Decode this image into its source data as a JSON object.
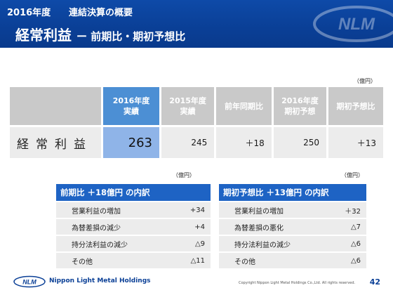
{
  "header": {
    "year": "2016年度",
    "subtitle": "連結決算の概要",
    "title": "経常利益",
    "title_sub": "ー 前期比・期初予想比"
  },
  "unit_main": "（億円）",
  "main_table": {
    "headers": [
      "2016年度\n実績",
      "2015年度\n実績",
      "前年同期比",
      "2016年度\n期初予想",
      "期初予想比"
    ],
    "row_label": "経常利益",
    "values": [
      "263",
      "245",
      "＋18",
      "250",
      "＋13"
    ]
  },
  "breakdown_left": {
    "unit": "（億円）",
    "title": "前期比 ＋18億円 の内訳",
    "rows": [
      {
        "label": "営業利益の増加",
        "value": "+34"
      },
      {
        "label": "為替差損の減少",
        "value": "+4"
      },
      {
        "label": "持分法利益の減少",
        "value": "△9"
      },
      {
        "label": "その他",
        "value": "△11"
      }
    ]
  },
  "breakdown_right": {
    "unit": "（億円）",
    "title": "期初予想比 ＋13億円 の内訳",
    "rows": [
      {
        "label": "営業利益の増加",
        "value": "＋32"
      },
      {
        "label": "為替差損の悪化",
        "value": "△7"
      },
      {
        "label": "持分法利益の減少",
        "value": "△6"
      },
      {
        "label": "その他",
        "value": "△6"
      }
    ]
  },
  "footer": {
    "logo_text": "NLM",
    "company": "Nippon Light Metal Holdings",
    "copyright": "Copyright Nippon Light Metal Holdings Co.,Ltd. All rights reserved.",
    "page": "42"
  },
  "colors": {
    "header_blue": "#0a3f96",
    "highlight_blue": "#4c8fd4",
    "highlight_cell": "#8fb4e8",
    "breakdown_head": "#1e63c4"
  }
}
